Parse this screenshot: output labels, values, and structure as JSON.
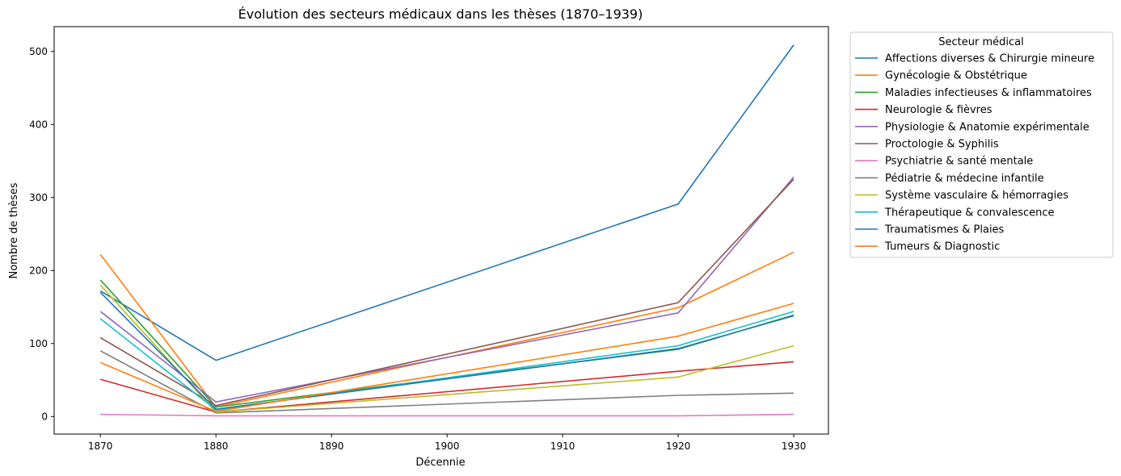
{
  "chart_data": {
    "type": "line",
    "title": "Évolution des secteurs médicaux dans les thèses (1870–1939)",
    "xlabel": "Décennie",
    "ylabel": "Nombre de thèses",
    "x": [
      1870,
      1880,
      1890,
      1900,
      1910,
      1920,
      1930
    ],
    "xlim": [
      1866,
      1933
    ],
    "ylim": [
      -24,
      534
    ],
    "xticks": [
      1870,
      1880,
      1890,
      1900,
      1910,
      1920,
      1930
    ],
    "yticks": [
      0,
      100,
      200,
      300,
      400,
      500
    ],
    "grid": false,
    "legend": {
      "title": "Secteur médical",
      "placement": "outside-top-right"
    },
    "series": [
      {
        "name": "Affections diverses & Chirurgie mineure",
        "color": "#1f77b4",
        "x": [
          1870,
          1880,
          1920,
          1930
        ],
        "values": [
          172,
          77,
          291,
          509
        ]
      },
      {
        "name": "Gynécologie & Obstétrique",
        "color": "#ff7f0e",
        "x": [
          1870,
          1880,
          1920,
          1930
        ],
        "values": [
          222,
          13,
          149,
          225
        ]
      },
      {
        "name": "Maladies infectieuses & inflammatoires",
        "color": "#2ca02c",
        "x": [
          1870,
          1880,
          1920,
          1930
        ],
        "values": [
          187,
          13,
          92,
          139
        ]
      },
      {
        "name": "Neurologie & fièvres",
        "color": "#d62728",
        "x": [
          1870,
          1880,
          1920,
          1930
        ],
        "values": [
          51,
          6,
          62,
          75
        ]
      },
      {
        "name": "Physiologie & Anatomie expérimentale",
        "color": "#9467bd",
        "x": [
          1870,
          1880,
          1920,
          1930
        ],
        "values": [
          144,
          20,
          142,
          328
        ]
      },
      {
        "name": "Proctologie & Syphilis",
        "color": "#8c564b",
        "x": [
          1870,
          1880,
          1920,
          1930
        ],
        "values": [
          108,
          15,
          156,
          325
        ]
      },
      {
        "name": "Psychiatrie & santé mentale",
        "color": "#e377c2",
        "x": [
          1870,
          1880,
          1920,
          1930
        ],
        "values": [
          3,
          1,
          1,
          3
        ]
      },
      {
        "name": "Pédiatrie & médecine infantile",
        "color": "#7f7f7f",
        "x": [
          1870,
          1880,
          1920,
          1930
        ],
        "values": [
          90,
          5,
          29,
          32
        ]
      },
      {
        "name": "Système vasculaire & hémorragies",
        "color": "#bcbd22",
        "x": [
          1870,
          1880,
          1920,
          1930
        ],
        "values": [
          180,
          6,
          54,
          97
        ]
      },
      {
        "name": "Thérapeutique & convalescence",
        "color": "#17becf",
        "x": [
          1870,
          1880,
          1920,
          1930
        ],
        "values": [
          134,
          9,
          97,
          144
        ]
      },
      {
        "name": "Traumatismes & Plaies",
        "color": "#1f77b4",
        "x": [
          1870,
          1880,
          1920,
          1930
        ],
        "values": [
          170,
          10,
          93,
          138
        ]
      },
      {
        "name": "Tumeurs & Diagnostic",
        "color": "#ff7f0e",
        "x": [
          1870,
          1880,
          1920,
          1930
        ],
        "values": [
          74,
          7,
          110,
          155
        ]
      }
    ]
  }
}
